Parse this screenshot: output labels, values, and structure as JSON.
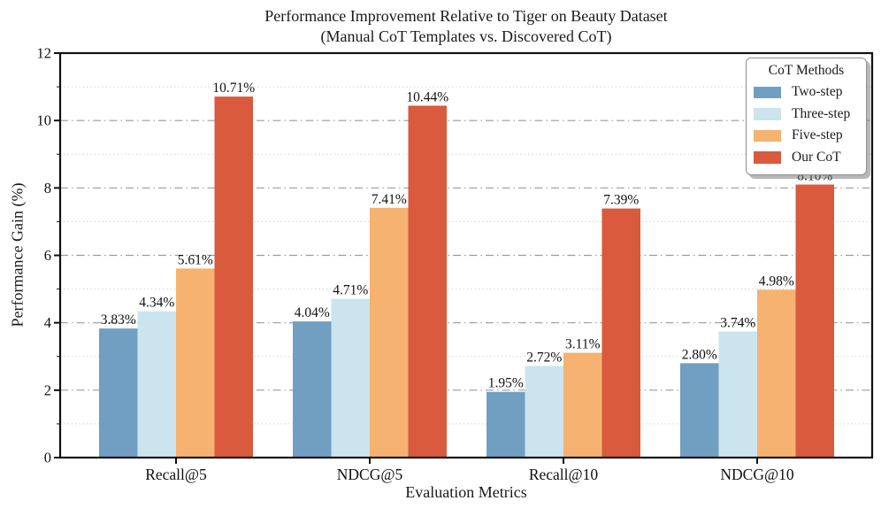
{
  "chart_data": {
    "type": "bar",
    "title": "Performance Improvement Relative to Tiger on Beauty Dataset (Manual CoT Templates vs. Discovered CoT)",
    "title_lines": [
      "Performance Improvement Relative to Tiger on Beauty Dataset",
      "(Manual CoT Templates vs. Discovered CoT)"
    ],
    "xlabel": "Evaluation Metrics",
    "ylabel": "Performance Gain (%)",
    "categories": [
      "Recall@5",
      "NDCG@5",
      "Recall@10",
      "NDCG@10"
    ],
    "series": [
      {
        "name": "Two-step",
        "color": "#719FC2",
        "values": [
          3.83,
          4.04,
          1.95,
          2.8
        ]
      },
      {
        "name": "Three-step",
        "color": "#CBE4ED",
        "values": [
          4.34,
          4.71,
          2.72,
          3.74
        ]
      },
      {
        "name": "Five-step",
        "color": "#F5B270",
        "values": [
          5.61,
          7.41,
          3.11,
          4.98
        ]
      },
      {
        "name": "Our CoT",
        "color": "#D95A3C",
        "values": [
          10.71,
          10.44,
          7.39,
          8.1
        ]
      }
    ],
    "value_suffix": "%",
    "ylim": [
      0,
      12
    ],
    "yticks": [
      0,
      2,
      4,
      6,
      8,
      10,
      12
    ],
    "grid": {
      "major": true,
      "minor": true
    },
    "legend_title": "CoT Methods",
    "legend_position": "upper right"
  }
}
